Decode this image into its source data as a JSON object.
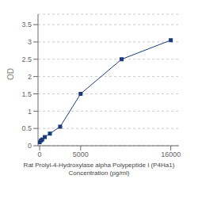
{
  "chart_data": {
    "type": "line",
    "xlabel": "Rat Prolyl-4-Hydroxylase alpha Polypeptide I (P4Ha1)\nConcentration (pg/ml)",
    "ylabel": "OD",
    "x": [
      0,
      156.25,
      312.5,
      625,
      1250,
      2500,
      5000,
      10000,
      16000
    ],
    "values": [
      0.1,
      0.15,
      0.18,
      0.25,
      0.35,
      0.55,
      1.5,
      2.5,
      3.05
    ],
    "color": "#1a3a7a",
    "marker": "square",
    "xlim": [
      -200,
      17000
    ],
    "ylim": [
      0,
      3.8
    ],
    "xticks": [
      0,
      5000,
      16000
    ],
    "yticks": [
      0,
      0.5,
      1,
      1.5,
      2,
      2.5,
      3,
      3.5
    ],
    "grid": "y"
  }
}
